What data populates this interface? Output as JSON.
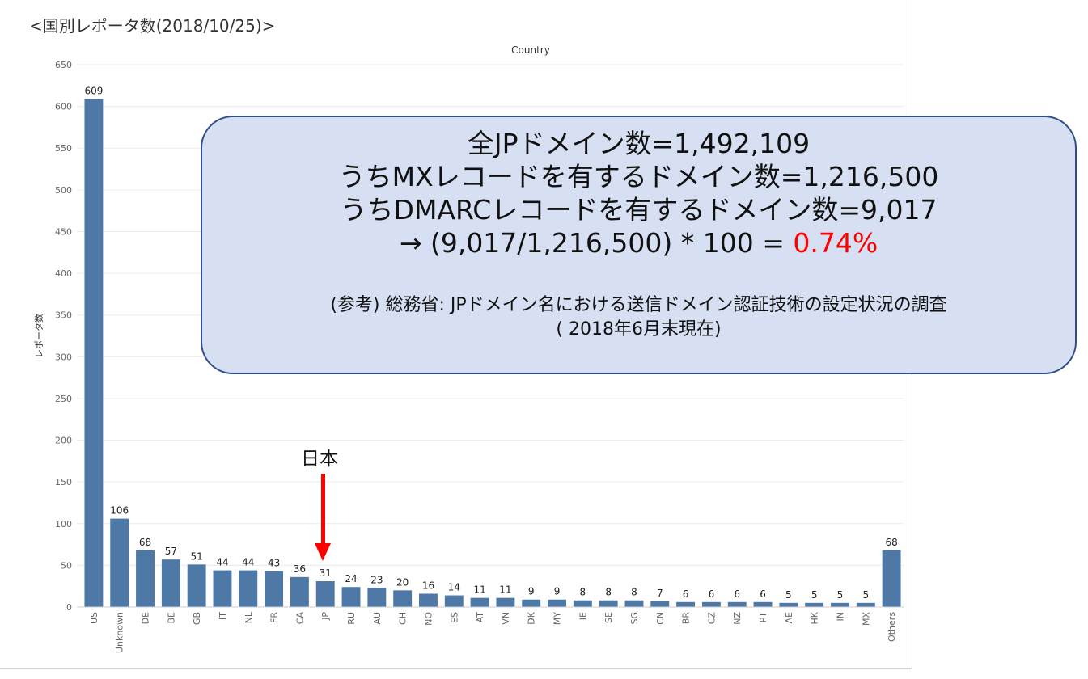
{
  "page_title": "<国別レポータ数(2018/10/25)>",
  "chart_data": {
    "type": "bar",
    "title": "Country",
    "xlabel": "",
    "ylabel": "レポータ数",
    "ylim": [
      0,
      650
    ],
    "yticks": [
      0,
      50,
      100,
      150,
      200,
      250,
      300,
      350,
      400,
      450,
      500,
      550,
      600,
      650
    ],
    "grid": true,
    "bar_color": "#4e79a7",
    "categories": [
      "US",
      "Unknown",
      "DE",
      "BE",
      "GB",
      "IT",
      "NL",
      "FR",
      "CA",
      "JP",
      "RU",
      "AU",
      "CH",
      "NO",
      "ES",
      "AT",
      "VN",
      "DK",
      "MY",
      "IE",
      "SE",
      "SG",
      "CN",
      "BR",
      "CZ",
      "NZ",
      "PT",
      "AE",
      "HK",
      "IN",
      "MX",
      "Others"
    ],
    "values": [
      609,
      106,
      68,
      57,
      51,
      44,
      44,
      43,
      36,
      31,
      24,
      23,
      20,
      16,
      14,
      11,
      11,
      9,
      9,
      8,
      8,
      8,
      7,
      6,
      6,
      6,
      6,
      5,
      5,
      5,
      5,
      68
    ]
  },
  "callout": {
    "line1": "全JPドメイン数=1,492,109",
    "line2": "うちMXレコードを有するドメイン数=1,216,500",
    "line3": "うちDMARCレコードを有するドメイン数=9,017",
    "line4_prefix": "→ (9,017/1,216,500) * 100 = ",
    "line4_value": "0.74%",
    "ref1": "(参考) 総務省: JPドメイン名における送信ドメイン認証技術の設定状況の調査",
    "ref2": "( 2018年6月末現在)",
    "highlight_color": "#ff0000"
  },
  "annotation": {
    "label": "日本",
    "target": "JP",
    "color": "#ff0000"
  }
}
